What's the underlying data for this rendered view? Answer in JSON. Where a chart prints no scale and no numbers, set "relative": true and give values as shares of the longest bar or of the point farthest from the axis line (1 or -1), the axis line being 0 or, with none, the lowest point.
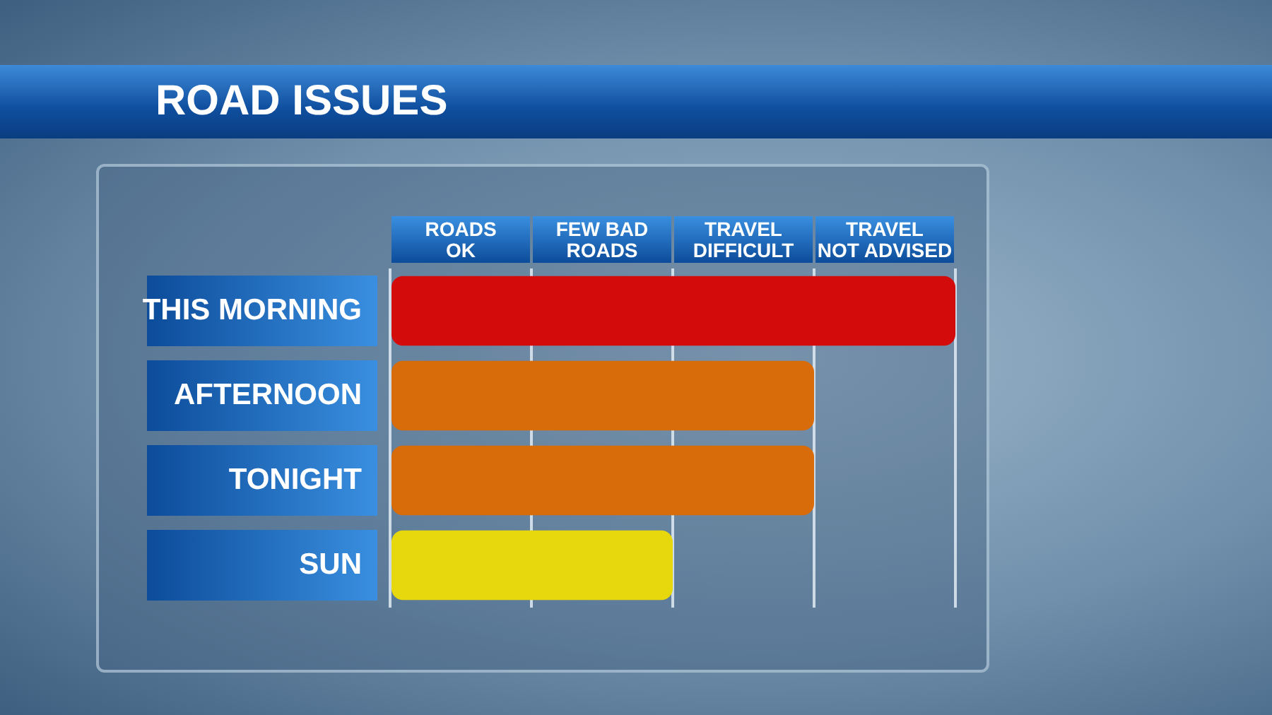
{
  "chart_data": {
    "type": "bar",
    "orientation": "horizontal",
    "title": "ROAD ISSUES",
    "relative": true,
    "categories": [
      "THIS MORNING",
      "AFTERNOON",
      "TONIGHT",
      "SUN"
    ],
    "values": [
      1,
      0.75,
      0.75,
      0.5
    ],
    "colors": [
      "#d40b0b",
      "#d86b0a",
      "#d86b0a",
      "#e6d80c"
    ],
    "annotations": [
      "ROADS\nOK",
      "FEW BAD\nROADS",
      "TRAVEL\nDIFFICULT",
      "TRAVEL\nNOT ADVISED"
    ],
    "grid": "x",
    "legend": false
  }
}
